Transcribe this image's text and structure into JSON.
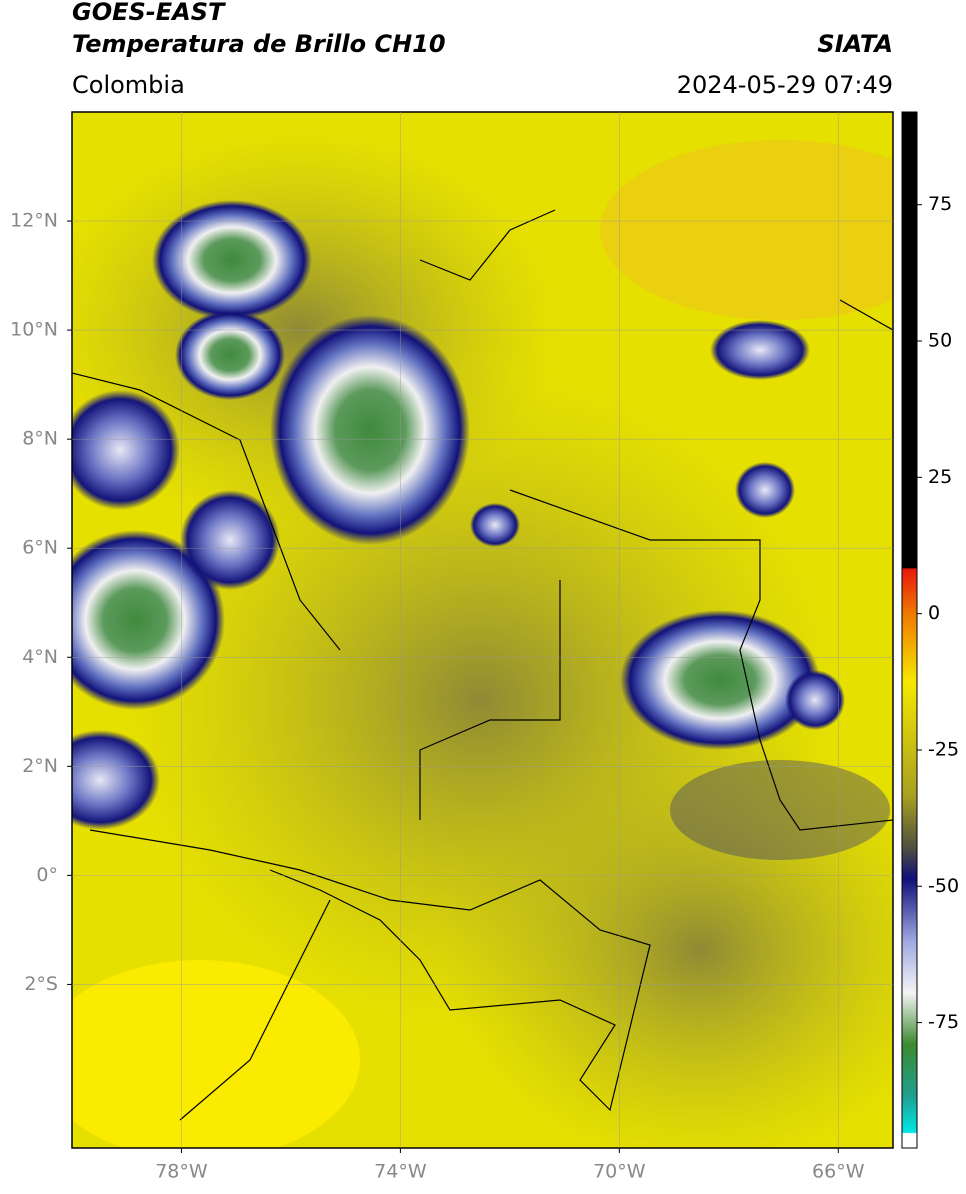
{
  "header": {
    "title": "GOES-EAST",
    "subtitle": "Temperatura de Brillo CH10",
    "source": "SIATA",
    "region": "Colombia",
    "timestamp": "2024-05-29 07:49"
  },
  "map": {
    "lonlim": [
      -80,
      -65
    ],
    "latlim": [
      -5,
      14
    ],
    "lonticks": [
      {
        "value": -78,
        "label": "78°W"
      },
      {
        "value": -74,
        "label": "74°W"
      },
      {
        "value": -70,
        "label": "70°W"
      },
      {
        "value": -66,
        "label": "66°W"
      }
    ],
    "latticks": [
      {
        "value": 12,
        "label": "12°N"
      },
      {
        "value": 10,
        "label": "10°N"
      },
      {
        "value": 8,
        "label": "8°N"
      },
      {
        "value": 6,
        "label": "6°N"
      },
      {
        "value": 4,
        "label": "4°N"
      },
      {
        "value": 2,
        "label": "2°N"
      },
      {
        "value": 0,
        "label": "0°"
      },
      {
        "value": -2,
        "label": "2°S"
      }
    ],
    "grid": true
  },
  "colorbar": {
    "lim": [
      -98,
      92
    ],
    "ticks": [
      75,
      50,
      25,
      0,
      -25,
      -50,
      -75
    ]
  }
}
